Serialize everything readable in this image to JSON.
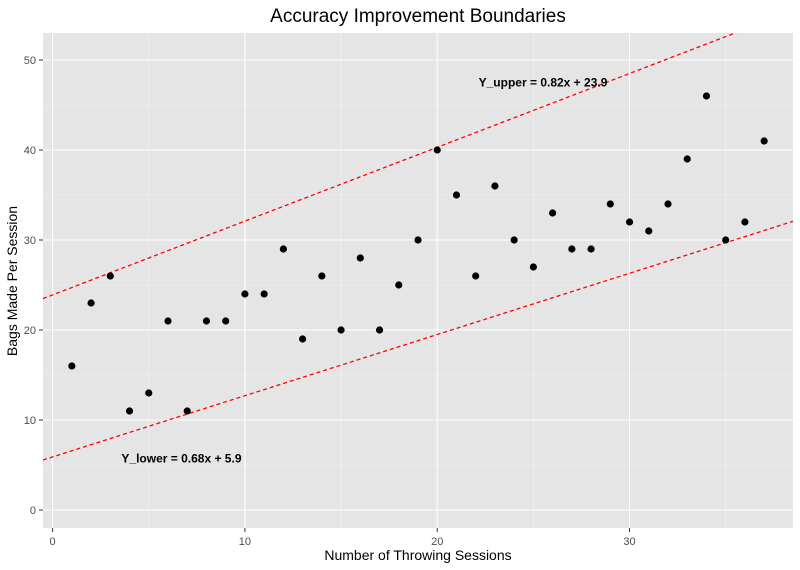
{
  "chart_data": {
    "type": "scatter",
    "title": "Accuracy Improvement Boundaries",
    "xlabel": "Number of Throwing Sessions",
    "ylabel": "Bags Made Per Session",
    "xlim": [
      -0.5,
      38.5
    ],
    "ylim": [
      -2,
      53
    ],
    "x_ticks": [
      0,
      10,
      20,
      30
    ],
    "y_ticks": [
      0,
      10,
      20,
      30,
      40,
      50
    ],
    "grid": true,
    "background": "#e5e5e5",
    "point_color": "#000000",
    "line_color": "#ff0000",
    "points": [
      {
        "x": 1,
        "y": 16
      },
      {
        "x": 2,
        "y": 23
      },
      {
        "x": 3,
        "y": 26
      },
      {
        "x": 4,
        "y": 11
      },
      {
        "x": 5,
        "y": 13
      },
      {
        "x": 6,
        "y": 21
      },
      {
        "x": 7,
        "y": 11
      },
      {
        "x": 8,
        "y": 21
      },
      {
        "x": 9,
        "y": 21
      },
      {
        "x": 10,
        "y": 24
      },
      {
        "x": 11,
        "y": 24
      },
      {
        "x": 12,
        "y": 29
      },
      {
        "x": 13,
        "y": 19
      },
      {
        "x": 14,
        "y": 26
      },
      {
        "x": 15,
        "y": 20
      },
      {
        "x": 16,
        "y": 28
      },
      {
        "x": 17,
        "y": 20
      },
      {
        "x": 18,
        "y": 25
      },
      {
        "x": 19,
        "y": 30
      },
      {
        "x": 20,
        "y": 40
      },
      {
        "x": 21,
        "y": 35
      },
      {
        "x": 22,
        "y": 26
      },
      {
        "x": 23,
        "y": 36
      },
      {
        "x": 24,
        "y": 30
      },
      {
        "x": 25,
        "y": 27
      },
      {
        "x": 26,
        "y": 33
      },
      {
        "x": 27,
        "y": 29
      },
      {
        "x": 28,
        "y": 29
      },
      {
        "x": 29,
        "y": 34
      },
      {
        "x": 30,
        "y": 32
      },
      {
        "x": 31,
        "y": 31
      },
      {
        "x": 32,
        "y": 34
      },
      {
        "x": 33,
        "y": 39
      },
      {
        "x": 34,
        "y": 46
      },
      {
        "x": 35,
        "y": 30
      },
      {
        "x": 36,
        "y": 32
      },
      {
        "x": 37,
        "y": 41
      }
    ],
    "lines": [
      {
        "name": "upper",
        "slope": 0.82,
        "intercept": 23.9,
        "label": "Y_upper = 0.82x + 23.9",
        "label_x": 25.5,
        "label_y": 47.5
      },
      {
        "name": "lower",
        "slope": 0.68,
        "intercept": 5.9,
        "label": "Y_lower = 0.68x + 5.9",
        "label_x": 6.7,
        "label_y": 5.7
      }
    ]
  }
}
